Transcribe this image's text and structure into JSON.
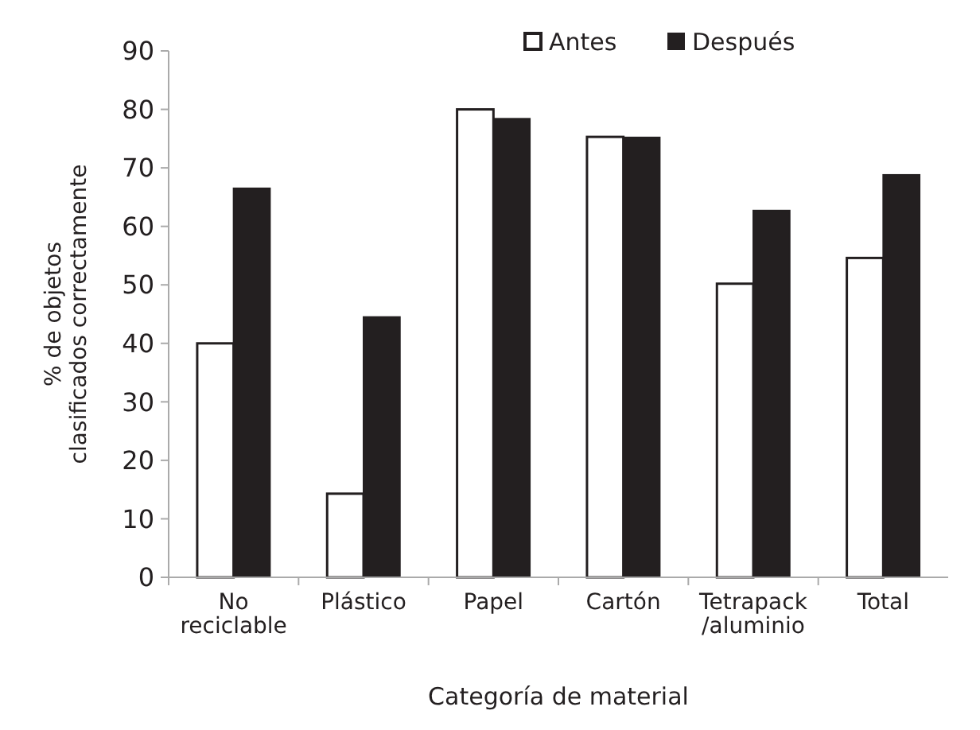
{
  "chart_data": {
    "type": "bar",
    "xlabel": "Categoría de material",
    "ylabel": "% de objetos\nclasificados correctamente",
    "categories": [
      "No\nreciclable",
      "Plástico",
      "Papel",
      "Cartón",
      "Tetrapack\n/aluminio",
      "Total"
    ],
    "series": [
      {
        "name": "Antes",
        "color": "#ffffff",
        "values": [
          40,
          14.3,
          80,
          75.3,
          50.2,
          54.6
        ]
      },
      {
        "name": "Después",
        "color": "#231f20",
        "values": [
          66.5,
          44.5,
          78.4,
          75.2,
          62.7,
          68.8
        ]
      }
    ],
    "ylim": [
      0,
      90
    ],
    "yticks": [
      0,
      10,
      20,
      30,
      40,
      50,
      60,
      70,
      80,
      90
    ],
    "grid": false,
    "legend": "top right"
  }
}
